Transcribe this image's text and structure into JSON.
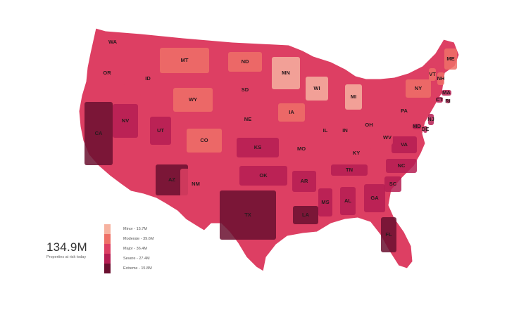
{
  "map": {
    "states": [
      {
        "code": "WA",
        "level": 2
      },
      {
        "code": "OR",
        "level": 2
      },
      {
        "code": "CA",
        "level": 4
      },
      {
        "code": "ID",
        "level": 2
      },
      {
        "code": "NV",
        "level": 3
      },
      {
        "code": "MT",
        "level": 1
      },
      {
        "code": "WY",
        "level": 1
      },
      {
        "code": "UT",
        "level": 3
      },
      {
        "code": "AZ",
        "level": 4
      },
      {
        "code": "CO",
        "level": 1
      },
      {
        "code": "NM",
        "level": 2
      },
      {
        "code": "ND",
        "level": 1
      },
      {
        "code": "SD",
        "level": 2
      },
      {
        "code": "NE",
        "level": 2
      },
      {
        "code": "KS",
        "level": 3
      },
      {
        "code": "OK",
        "level": 3
      },
      {
        "code": "TX",
        "level": 4
      },
      {
        "code": "MN",
        "level": 0
      },
      {
        "code": "IA",
        "level": 1
      },
      {
        "code": "MO",
        "level": 2
      },
      {
        "code": "AR",
        "level": 3
      },
      {
        "code": "LA",
        "level": 4
      },
      {
        "code": "WI",
        "level": 0
      },
      {
        "code": "IL",
        "level": 2
      },
      {
        "code": "MI",
        "level": 0
      },
      {
        "code": "IN",
        "level": 2
      },
      {
        "code": "OH",
        "level": 2
      },
      {
        "code": "KY",
        "level": 2
      },
      {
        "code": "TN",
        "level": 3
      },
      {
        "code": "MS",
        "level": 3
      },
      {
        "code": "AL",
        "level": 3
      },
      {
        "code": "GA",
        "level": 3
      },
      {
        "code": "FL",
        "level": 4
      },
      {
        "code": "SC",
        "level": 3
      },
      {
        "code": "NC",
        "level": 3
      },
      {
        "code": "VA",
        "level": 3
      },
      {
        "code": "WV",
        "level": 2
      },
      {
        "code": "PA",
        "level": 2
      },
      {
        "code": "NY",
        "level": 1
      },
      {
        "code": "VT",
        "level": 1
      },
      {
        "code": "NH",
        "level": 1
      },
      {
        "code": "ME",
        "level": 1
      },
      {
        "code": "MA",
        "level": 3
      },
      {
        "code": "CT",
        "level": 3
      },
      {
        "code": "RI",
        "level": 3
      },
      {
        "code": "NJ",
        "level": 3
      },
      {
        "code": "DE",
        "level": 3
      },
      {
        "code": "MD",
        "level": 3
      }
    ],
    "no_data_color": "#8f8f9a"
  },
  "summary": {
    "total": "134.9M",
    "caption": "Properties at risk today"
  },
  "legend": [
    {
      "label": "Minor - 15.7M",
      "color": "#f6b2a0"
    },
    {
      "label": "Moderate - 39.6M",
      "color": "#ee7067"
    },
    {
      "label": "Major - 36.4M",
      "color": "#dd3f63"
    },
    {
      "label": "Severe - 27.4M",
      "color": "#b51d52"
    },
    {
      "label": "Extreme - 15.8M",
      "color": "#6a0f2f"
    }
  ]
}
